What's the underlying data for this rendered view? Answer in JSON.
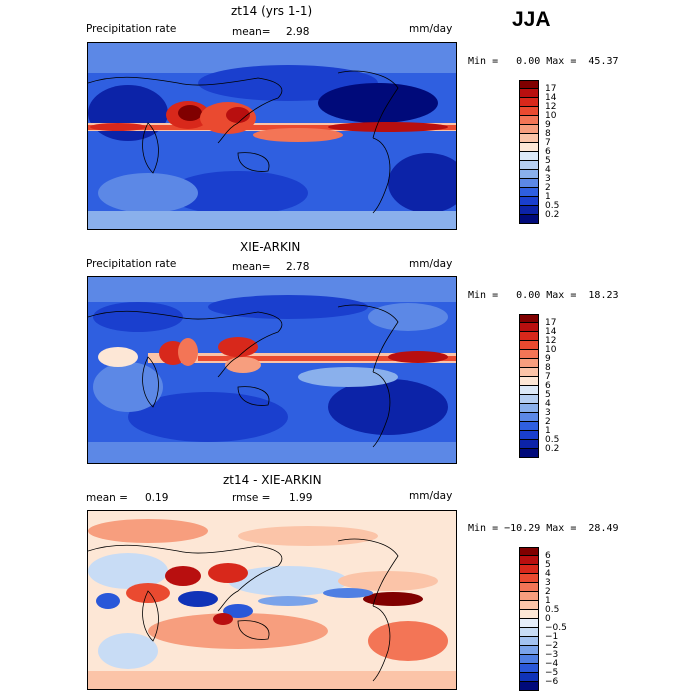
{
  "season": "JJA",
  "panels": [
    {
      "title": "zt14 (yrs 1-1)",
      "left_label": "Precipitation rate",
      "mean_label": "mean=",
      "mean_value": "2.98",
      "units": "mm/day",
      "stats": "Min =   0.00 Max =  45.37",
      "colorbar": {
        "labels": [
          "17",
          "14",
          "12",
          "10",
          "9",
          "8",
          "7",
          "6",
          "5",
          "4",
          "3",
          "2",
          "1",
          "0.5",
          "0.2"
        ],
        "colors": [
          "#800000",
          "#b80f0f",
          "#d8281b",
          "#ea4a30",
          "#f37556",
          "#f79e7e",
          "#fbc4a8",
          "#fde7d6",
          "#dce9f8",
          "#b6cff2",
          "#8ab0ec",
          "#5c88e6",
          "#2f5fe0",
          "#1a3fce",
          "#0c23a8",
          "#000a7a"
        ]
      }
    },
    {
      "title": "XIE-ARKIN",
      "left_label": "Precipitation rate",
      "mean_label": "mean=",
      "mean_value": "2.78",
      "units": "mm/day",
      "stats": "Min =   0.00 Max =  18.23",
      "colorbar": {
        "labels": [
          "17",
          "14",
          "12",
          "10",
          "9",
          "8",
          "7",
          "6",
          "5",
          "4",
          "3",
          "2",
          "1",
          "0.5",
          "0.2"
        ],
        "colors": [
          "#800000",
          "#b80f0f",
          "#d8281b",
          "#ea4a30",
          "#f37556",
          "#f79e7e",
          "#fbc4a8",
          "#fde7d6",
          "#dce9f8",
          "#b6cff2",
          "#8ab0ec",
          "#5c88e6",
          "#2f5fe0",
          "#1a3fce",
          "#0c23a8",
          "#000a7a"
        ]
      }
    },
    {
      "title": "zt14 - XIE-ARKIN",
      "left_label": "mean =",
      "mean_label": "",
      "mean_value": "0.19",
      "rmse_label": "rmse =",
      "rmse_value": "1.99",
      "units": "mm/day",
      "stats": "Min = −10.29 Max =  28.49",
      "colorbar": {
        "labels": [
          "6",
          "5",
          "4",
          "3",
          "2",
          "1",
          "0.5",
          "0",
          "−0.5",
          "−1",
          "−2",
          "−3",
          "−4",
          "−5",
          "−6"
        ],
        "colors": [
          "#800000",
          "#b80f0f",
          "#d8281b",
          "#ea4a30",
          "#f37556",
          "#f79e7e",
          "#fbc4a8",
          "#fde7d6",
          "#e6eefa",
          "#c8dcf5",
          "#a3c2f0",
          "#7aa3ea",
          "#4f7fe3",
          "#2a58d9",
          "#1033b8",
          "#000a7a"
        ]
      }
    }
  ]
}
